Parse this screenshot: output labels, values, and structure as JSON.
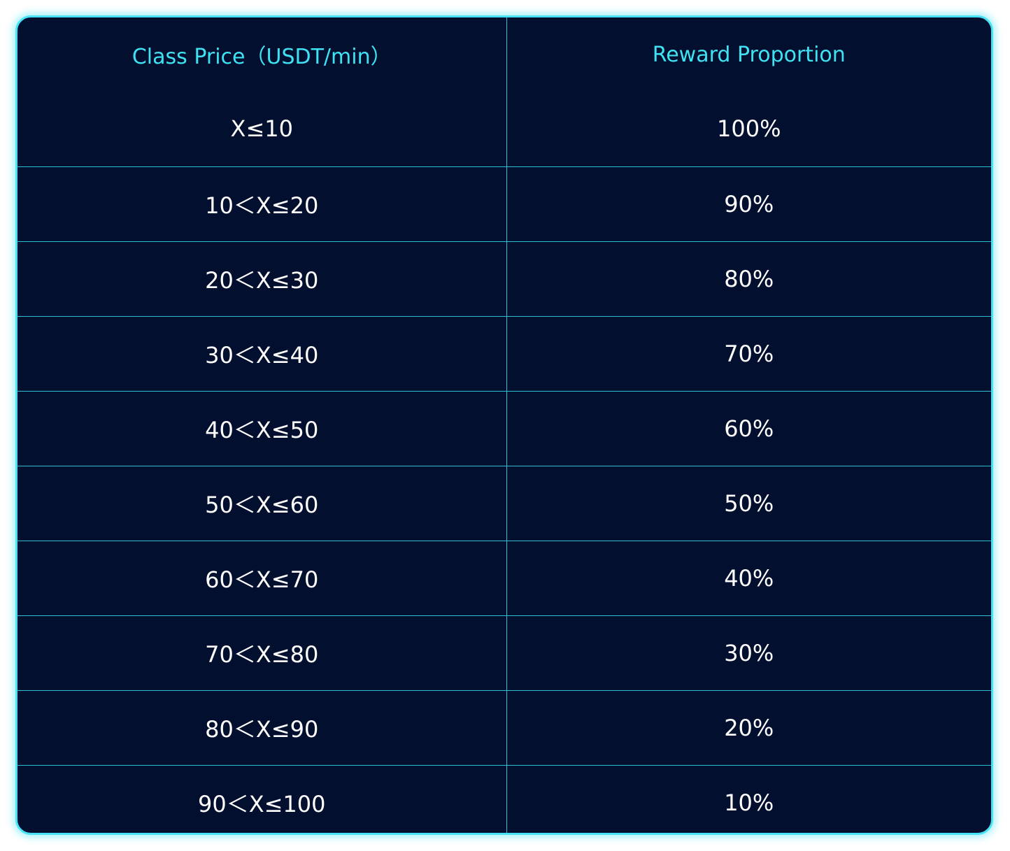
{
  "table": {
    "headers": [
      "Class Price（USDT/min）",
      "Reward Proportion"
    ],
    "rows": [
      [
        "X≤10",
        "100%"
      ],
      [
        "10＜X≤20",
        "90%"
      ],
      [
        "20＜X≤30",
        "80%"
      ],
      [
        "30＜X≤40",
        "70%"
      ],
      [
        "40＜X≤50",
        "60%"
      ],
      [
        "50＜X≤60",
        "50%"
      ],
      [
        "60＜X≤70",
        "40%"
      ],
      [
        "70＜X≤80",
        "30%"
      ],
      [
        "80＜X≤90",
        "20%"
      ],
      [
        "90＜X≤100",
        "10%"
      ]
    ]
  },
  "colors": {
    "background": "#020f2e",
    "border": "#49e3f5",
    "header_text": "#3fe2f3",
    "cell_text": "#ffffff"
  }
}
